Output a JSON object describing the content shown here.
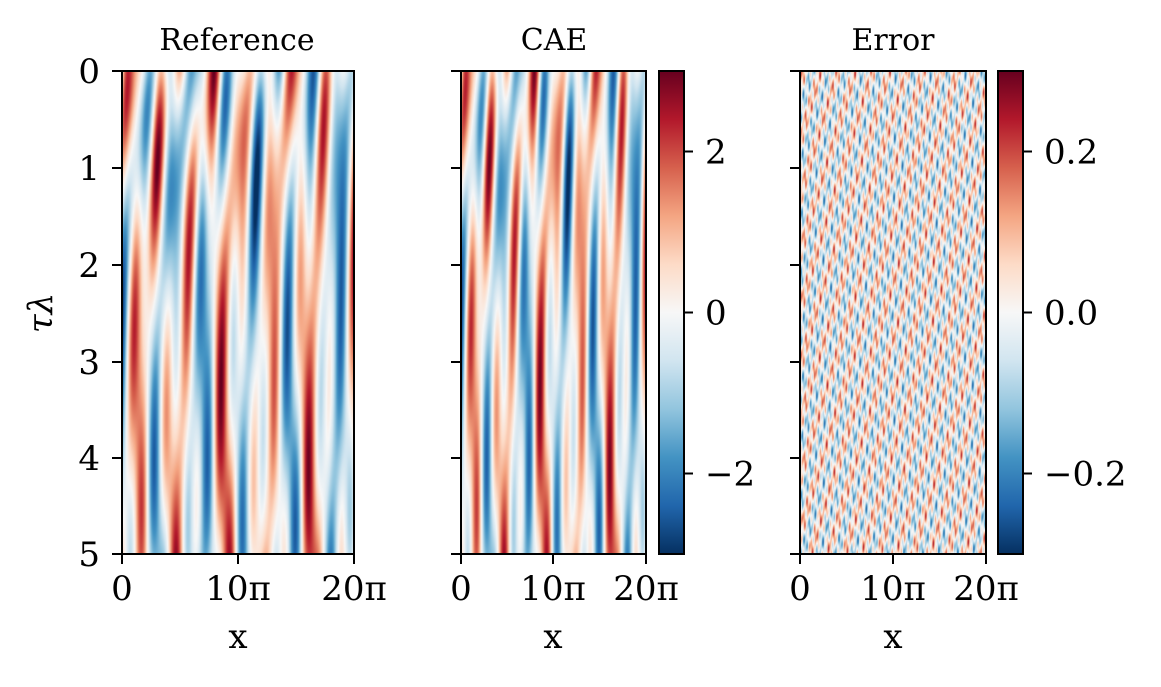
{
  "chart_data": [
    {
      "type": "heatmap",
      "title": "Reference",
      "xlabel": "x",
      "ylabel": "τλ",
      "x_ticks": [
        "0",
        "10π",
        "20π"
      ],
      "y_ticks": [
        "0",
        "1",
        "2",
        "3",
        "4",
        "5"
      ],
      "xlim": [
        0,
        62.83
      ],
      "ylim": [
        5,
        0
      ],
      "value_range": [
        -3,
        3
      ],
      "colormap": "RdBu_r"
    },
    {
      "type": "heatmap",
      "title": "CAE",
      "xlabel": "x",
      "x_ticks": [
        "0",
        "10π",
        "20π"
      ],
      "xlim": [
        0,
        62.83
      ],
      "ylim": [
        5,
        0
      ],
      "value_range": [
        -3,
        3
      ],
      "colormap": "RdBu_r",
      "colorbar_ticks": [
        "2",
        "0",
        "−2"
      ],
      "colorbar_tick_values": [
        2,
        0,
        -2
      ]
    },
    {
      "type": "heatmap",
      "title": "Error",
      "xlabel": "x",
      "x_ticks": [
        "0",
        "10π",
        "20π"
      ],
      "xlim": [
        0,
        62.83
      ],
      "ylim": [
        5,
        0
      ],
      "value_range": [
        -0.3,
        0.3
      ],
      "colormap": "RdBu_r",
      "colorbar_ticks": [
        "0.2",
        "0.0",
        "−0.2"
      ],
      "colorbar_tick_values": [
        0.2,
        0.0,
        -0.2
      ]
    }
  ]
}
